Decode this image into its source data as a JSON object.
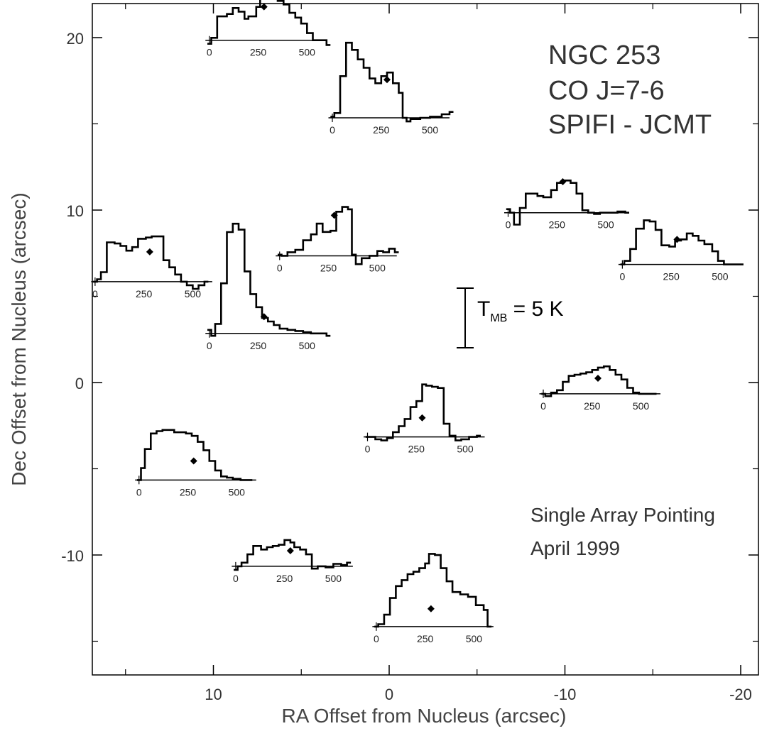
{
  "chart_data": {
    "type": "line",
    "xlabel": "RA Offset from Nucleus (arcsec)",
    "ylabel": "Dec Offset from Nucleus (arcsec)",
    "xlim": [
      17,
      -21
    ],
    "ylim": [
      -17,
      22
    ],
    "x_ticks": [
      10,
      0,
      -10,
      -20
    ],
    "x_tick_labels": [
      "10",
      "0",
      "-10",
      "-20"
    ],
    "y_ticks": [
      20,
      10,
      0,
      -10
    ],
    "y_tick_labels": [
      "20",
      "10",
      "0",
      "-10"
    ],
    "annotations": {
      "title_lines": [
        "NGC 253",
        "CO J=7-6",
        "SPIFI - JCMT"
      ],
      "note_lines": [
        "Single Array Pointing",
        "April 1999"
      ],
      "scale_bar_label_main": "T",
      "scale_bar_label_sub": "MB",
      "scale_bar_label_rest": " = 5 K",
      "scale_bar_kelvin": 5
    },
    "spectrum_axis": {
      "velocity_ticks": [
        0,
        250,
        500
      ],
      "velocity_tick_labels": [
        "0",
        "250",
        "500"
      ],
      "velocity_range": [
        -20,
        600
      ],
      "systemic_velocity": 250
    },
    "spectra": [
      {
        "ra": 7.0,
        "dec": 21.0,
        "marker_temp": 2.8,
        "v": [
          -10,
          10,
          40,
          90,
          120,
          150,
          180,
          200,
          240,
          260,
          290,
          320,
          350,
          380,
          410,
          440,
          470,
          500,
          530,
          600
        ],
        "t": [
          -0.3,
          0.2,
          2.0,
          2.2,
          2.7,
          2.4,
          1.8,
          2.0,
          2.8,
          3.6,
          4.0,
          3.8,
          3.3,
          3.0,
          2.3,
          1.9,
          1.4,
          0.6,
          0.0,
          -0.4
        ]
      },
      {
        "ra": 0.0,
        "dec": 16.5,
        "marker_temp": 3.2,
        "v": [
          -10,
          10,
          40,
          70,
          100,
          130,
          160,
          190,
          220,
          250,
          280,
          310,
          340,
          360,
          380,
          400,
          450,
          500,
          560,
          600
        ],
        "t": [
          0.1,
          0.4,
          3.5,
          6.3,
          5.7,
          4.9,
          4.2,
          3.3,
          2.9,
          3.5,
          3.8,
          2.9,
          2.1,
          0.0,
          -0.3,
          -0.1,
          0.0,
          0.1,
          0.3,
          0.5
        ]
      },
      {
        "ra": -10.0,
        "dec": 11.0,
        "marker_temp": 2.6,
        "v": [
          -10,
          10,
          30,
          60,
          90,
          120,
          150,
          180,
          220,
          250,
          280,
          320,
          350,
          380,
          410,
          440,
          470,
          520,
          560,
          600
        ],
        "t": [
          0.3,
          0.0,
          -1.0,
          0.4,
          1.6,
          1.6,
          1.4,
          1.3,
          1.9,
          2.5,
          2.7,
          2.5,
          1.6,
          0.2,
          0.0,
          -0.1,
          0.0,
          0.0,
          0.1,
          0.0
        ]
      },
      {
        "ra": -16.5,
        "dec": 8.0,
        "marker_temp": 2.1,
        "v": [
          -10,
          10,
          40,
          70,
          110,
          140,
          170,
          200,
          240,
          270,
          300,
          330,
          360,
          390,
          420,
          460,
          490,
          520,
          560,
          600
        ],
        "t": [
          0.0,
          0.3,
          1.3,
          3.0,
          3.7,
          3.6,
          2.9,
          1.6,
          1.5,
          2.0,
          2.1,
          2.6,
          2.4,
          2.0,
          1.7,
          1.1,
          0.3,
          0.0,
          0.0,
          0.0
        ]
      },
      {
        "ra": 3.0,
        "dec": 8.5,
        "marker_temp": 3.4,
        "v": [
          -10,
          10,
          40,
          80,
          120,
          160,
          190,
          220,
          260,
          290,
          320,
          350,
          370,
          390,
          420,
          460,
          500,
          530,
          560,
          590
        ],
        "t": [
          0.1,
          0.0,
          0.3,
          0.5,
          1.3,
          1.8,
          2.7,
          2.0,
          2.1,
          3.7,
          4.1,
          3.9,
          0.1,
          -0.7,
          -0.2,
          0.0,
          0.4,
          0.3,
          0.6,
          0.3
        ]
      },
      {
        "ra": 13.5,
        "dec": 7.0,
        "marker_temp": 2.5,
        "v": [
          -10,
          10,
          30,
          60,
          100,
          130,
          160,
          190,
          220,
          260,
          290,
          320,
          350,
          380,
          410,
          440,
          470,
          500,
          530,
          560
        ],
        "t": [
          0.0,
          0.2,
          0.8,
          3.3,
          3.2,
          3.0,
          2.6,
          2.9,
          3.6,
          3.7,
          3.8,
          3.8,
          1.8,
          1.2,
          0.6,
          0.0,
          -0.3,
          -0.6,
          -0.3,
          0.0
        ]
      },
      {
        "ra": 7.0,
        "dec": 4.0,
        "marker_temp": 1.4,
        "v": [
          -10,
          10,
          30,
          60,
          90,
          120,
          150,
          180,
          210,
          240,
          270,
          300,
          330,
          360,
          400,
          440,
          480,
          520,
          560,
          600
        ],
        "t": [
          0.3,
          -0.2,
          0.8,
          4.2,
          8.5,
          9.2,
          8.7,
          5.2,
          3.3,
          2.2,
          1.3,
          1.0,
          0.7,
          0.4,
          0.3,
          0.2,
          0.1,
          0.0,
          0.0,
          -0.2
        ]
      },
      {
        "ra": -12.0,
        "dec": 0.5,
        "marker_temp": 1.3,
        "v": [
          -10,
          10,
          40,
          70,
          100,
          130,
          160,
          190,
          220,
          250,
          280,
          310,
          340,
          370,
          400,
          430,
          460,
          490,
          520,
          560
        ],
        "t": [
          0.0,
          -0.2,
          0.1,
          0.3,
          1.0,
          1.5,
          1.6,
          1.7,
          1.8,
          2.0,
          2.2,
          2.3,
          2.0,
          1.6,
          1.2,
          0.5,
          0.1,
          0.0,
          0.0,
          0.0
        ]
      },
      {
        "ra": -2.0,
        "dec": -2.0,
        "marker_temp": 1.6,
        "v": [
          -10,
          10,
          40,
          70,
          100,
          130,
          160,
          190,
          220,
          250,
          280,
          300,
          330,
          360,
          390,
          420,
          450,
          480,
          520,
          560
        ],
        "t": [
          0.0,
          0.0,
          -0.2,
          -0.3,
          -0.1,
          0.4,
          0.9,
          1.5,
          2.5,
          3.0,
          4.4,
          4.3,
          4.2,
          4.1,
          1.1,
          0.1,
          -0.3,
          -0.2,
          0.0,
          0.1
        ]
      },
      {
        "ra": 11.0,
        "dec": -4.5,
        "marker_temp": 1.6,
        "v": [
          -10,
          10,
          30,
          60,
          90,
          120,
          150,
          180,
          210,
          240,
          270,
          300,
          330,
          360,
          390,
          420,
          450,
          480,
          520,
          560
        ],
        "t": [
          0.0,
          1.0,
          2.6,
          3.9,
          4.1,
          4.2,
          4.2,
          4.0,
          4.0,
          3.9,
          3.7,
          3.2,
          2.5,
          1.6,
          0.8,
          0.3,
          0.2,
          0.1,
          0.0,
          0.0
        ]
      },
      {
        "ra": 5.5,
        "dec": -9.5,
        "marker_temp": 1.3,
        "v": [
          -10,
          10,
          30,
          60,
          90,
          130,
          160,
          190,
          220,
          250,
          280,
          300,
          330,
          360,
          390,
          420,
          460,
          500,
          540,
          570
        ],
        "t": [
          -0.3,
          0.0,
          0.3,
          1.0,
          1.7,
          1.4,
          1.6,
          1.7,
          1.8,
          2.2,
          2.0,
          1.6,
          1.4,
          1.0,
          -0.2,
          0.0,
          -0.1,
          0.2,
          0.1,
          0.3
        ]
      },
      {
        "ra": -2.5,
        "dec": -13.0,
        "marker_temp": 1.5,
        "v": [
          -10,
          10,
          40,
          70,
          100,
          130,
          160,
          190,
          220,
          250,
          270,
          300,
          330,
          360,
          390,
          430,
          470,
          510,
          550,
          570
        ],
        "t": [
          0.0,
          0.2,
          1.0,
          2.4,
          3.4,
          3.9,
          4.4,
          4.6,
          4.9,
          5.3,
          6.1,
          6.0,
          4.9,
          3.8,
          2.9,
          2.7,
          2.5,
          1.8,
          1.4,
          0.0
        ]
      }
    ]
  }
}
